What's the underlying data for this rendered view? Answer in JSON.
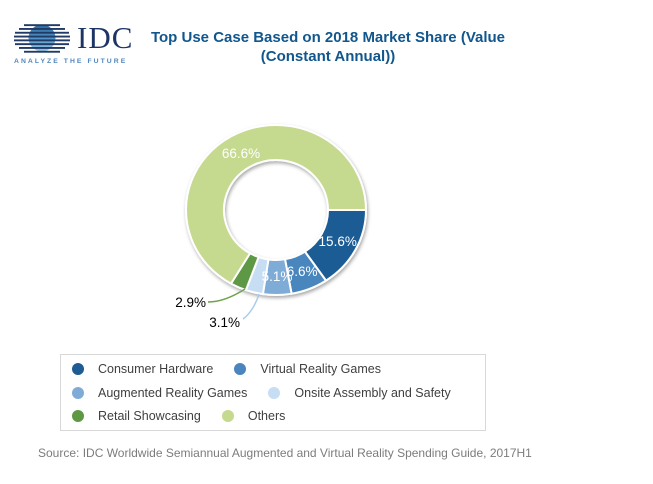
{
  "logo": {
    "name": "IDC",
    "tagline": "ANALYZE THE FUTURE"
  },
  "title": {
    "line1": "Top Use Case Based on 2018 Market Share (Value",
    "line2": "(Constant Annual))"
  },
  "source": "Source: IDC Worldwide Semiannual Augmented and Virtual Reality Spending Guide, 2017H1",
  "colors": {
    "title_text": "#11568C",
    "source_text": "#7C7C7C",
    "legend_border": "#D8D8D8",
    "legend_text": "#3F3F3F",
    "logo_navy": "#223B66",
    "logo_serif_navy": "#1D3466",
    "logo_tagline_blue": "#4E86BD",
    "inside_label": "#FFFFFF",
    "outside_label": "#000000"
  },
  "chart_data": {
    "type": "pie",
    "subtype": "donut",
    "title": "Top Use Case Based on 2018 Market Share (Value (Constant Annual))",
    "unit": "percent of 2018 market share (value, constant annual)",
    "start_angle_deg": 90,
    "direction": "clockwise",
    "legend_position": "bottom",
    "segments": [
      {
        "name": "Consumer Hardware",
        "value": 15.6,
        "label": "15.6%",
        "color": "#1F5C94",
        "label_placement": "inside"
      },
      {
        "name": "Virtual Reality Games",
        "value": 6.6,
        "label": "6.6%",
        "color": "#4A86BD",
        "label_placement": "inside"
      },
      {
        "name": "Augmented Reality Games",
        "value": 5.1,
        "label": "5.1%",
        "color": "#7FACD7",
        "label_placement": "inside"
      },
      {
        "name": "Onsite Assembly and Safety",
        "value": 3.1,
        "label": "3.1%",
        "color": "#C6DDF4",
        "label_placement": "outside"
      },
      {
        "name": "Retail Showcasing",
        "value": 2.9,
        "label": "2.9%",
        "color": "#5F9845",
        "label_placement": "outside"
      },
      {
        "name": "Others",
        "value": 66.6,
        "label": "66.6%",
        "color": "#C5D98F",
        "label_placement": "inside"
      }
    ]
  }
}
